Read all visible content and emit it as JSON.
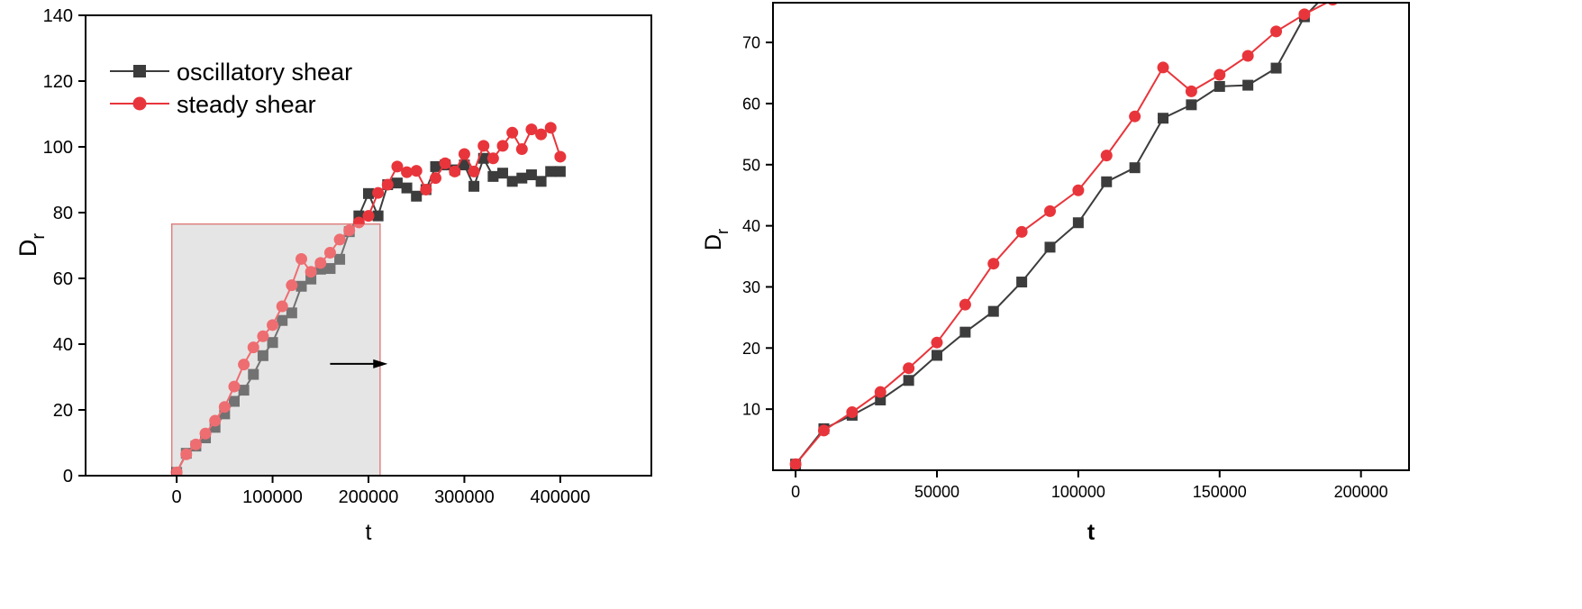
{
  "chart_data": [
    {
      "type": "line",
      "xlabel": "t",
      "ylabel": "D",
      "ylabel_sub": "r",
      "xlim": [
        -95000,
        495000
      ],
      "ylim": [
        0,
        140
      ],
      "xticks": [
        0,
        100000,
        200000,
        300000,
        400000
      ],
      "yticks": [
        0,
        20,
        40,
        60,
        80,
        100,
        120,
        140
      ],
      "grid": false,
      "legend_position": "top-left",
      "highlight_region": {
        "x": [
          -5000,
          212000
        ],
        "y": [
          0,
          76.5
        ],
        "color": "#dcdcdc"
      },
      "arrow": {
        "from": [
          160000,
          34
        ],
        "to": [
          220000,
          34
        ]
      },
      "series": [
        {
          "name": "oscillatory shear",
          "color": "#3c3c3c",
          "marker": "square",
          "x": [
            0,
            10000,
            20000,
            30000,
            40000,
            50000,
            60000,
            70000,
            80000,
            90000,
            100000,
            110000,
            120000,
            130000,
            140000,
            150000,
            160000,
            170000,
            180000,
            190000,
            200000,
            210000,
            220000,
            230000,
            240000,
            250000,
            260000,
            270000,
            280000,
            290000,
            300000,
            310000,
            320000,
            330000,
            340000,
            350000,
            360000,
            370000,
            380000,
            390000,
            400000
          ],
          "y": [
            1,
            6.8,
            9,
            11.5,
            14.7,
            18.8,
            22.6,
            26,
            30.8,
            36.5,
            40.5,
            47.2,
            49.5,
            57.6,
            59.8,
            62.8,
            63,
            65.8,
            74.2,
            79,
            85.8,
            79,
            88.5,
            89,
            87.5,
            85,
            87,
            94,
            94.5,
            93,
            94.5,
            88,
            96.5,
            91,
            92,
            89.5,
            90.5,
            91.5,
            89.5,
            92.5,
            92.5
          ]
        },
        {
          "name": "steady shear",
          "color": "#e8353b",
          "marker": "circle",
          "x": [
            0,
            10000,
            20000,
            30000,
            40000,
            50000,
            60000,
            70000,
            80000,
            90000,
            100000,
            110000,
            120000,
            130000,
            140000,
            150000,
            160000,
            170000,
            180000,
            190000,
            200000,
            210000,
            220000,
            230000,
            240000,
            250000,
            260000,
            270000,
            280000,
            290000,
            300000,
            310000,
            320000,
            330000,
            340000,
            350000,
            360000,
            370000,
            380000,
            390000,
            400000
          ],
          "y": [
            1,
            6.5,
            9.5,
            12.8,
            16.7,
            20.9,
            27.1,
            33.8,
            39,
            42.4,
            45.8,
            51.5,
            57.9,
            65.9,
            62,
            64.7,
            67.8,
            71.8,
            74.6,
            77,
            79,
            86,
            88.5,
            94,
            92.3,
            92.7,
            87,
            90.5,
            95,
            92.5,
            97.8,
            92.5,
            100.3,
            96.5,
            100.3,
            104.3,
            99.3,
            105.3,
            103.8,
            105.8,
            97
          ]
        }
      ]
    },
    {
      "type": "line",
      "xlabel": "t",
      "ylabel": "D",
      "ylabel_sub": "r",
      "xlim": [
        -8000,
        217000
      ],
      "ylim": [
        0,
        76.5
      ],
      "xticks": [
        0,
        50000,
        100000,
        150000,
        200000
      ],
      "yticks": [
        10,
        20,
        30,
        40,
        50,
        60,
        70
      ],
      "grid": false,
      "series": [
        {
          "name": "oscillatory shear",
          "color": "#3c3c3c",
          "marker": "square",
          "x": [
            0,
            10000,
            20000,
            30000,
            40000,
            50000,
            60000,
            70000,
            80000,
            90000,
            100000,
            110000,
            120000,
            130000,
            140000,
            150000,
            160000,
            170000,
            180000,
            190000
          ],
          "y": [
            1,
            6.8,
            9,
            11.5,
            14.7,
            18.8,
            22.6,
            26,
            30.8,
            36.5,
            40.5,
            47.2,
            49.5,
            57.6,
            59.8,
            62.8,
            63,
            65.8,
            74.2,
            79
          ]
        },
        {
          "name": "steady shear",
          "color": "#e8353b",
          "marker": "circle",
          "x": [
            0,
            10000,
            20000,
            30000,
            40000,
            50000,
            60000,
            70000,
            80000,
            90000,
            100000,
            110000,
            120000,
            130000,
            140000,
            150000,
            160000,
            170000,
            180000,
            190000
          ],
          "y": [
            1,
            6.5,
            9.5,
            12.8,
            16.7,
            20.9,
            27.1,
            33.8,
            39,
            42.4,
            45.8,
            51.5,
            57.9,
            65.9,
            62,
            64.7,
            67.8,
            71.8,
            74.6,
            77
          ]
        }
      ]
    }
  ]
}
